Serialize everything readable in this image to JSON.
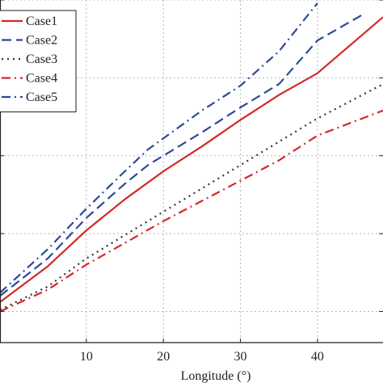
{
  "chart_data": {
    "type": "line",
    "xlabel": "Longitude (°)",
    "ylabel": "",
    "xlim": [
      -1.2,
      48.5
    ],
    "ylim": [
      0,
      22
    ],
    "x_ticks": [
      10,
      20,
      30,
      40
    ],
    "x_tick_labels": [
      "10",
      "20",
      "30",
      "40"
    ],
    "y_ticks": [
      2,
      7,
      12,
      17,
      22
    ],
    "grid": true,
    "legend_position": "top-left",
    "series": [
      {
        "name": "Case1",
        "color": "#d62728",
        "dash": "solid",
        "x": [
          -1.2,
          5,
          10,
          15,
          20,
          25,
          30,
          35,
          40,
          48.5
        ],
        "y": [
          2.6,
          4.9,
          7.2,
          9.2,
          11.0,
          12.6,
          14.3,
          15.9,
          17.3,
          20.9
        ]
      },
      {
        "name": "Case2",
        "color": "#2c4a9a",
        "dash": "longdash",
        "x": [
          -1.2,
          5,
          10,
          15,
          18,
          25,
          30,
          35,
          40,
          46
        ],
        "y": [
          3.0,
          5.4,
          8.0,
          10.2,
          11.4,
          13.5,
          15.1,
          16.6,
          19.4,
          21.1
        ]
      },
      {
        "name": "Case3",
        "color": "#333333",
        "dash": "dotted",
        "x": [
          -1.2,
          5,
          10,
          15,
          20,
          25,
          30,
          35,
          40,
          48.5
        ],
        "y": [
          2.1,
          3.6,
          5.4,
          6.9,
          8.4,
          9.9,
          11.4,
          12.9,
          14.4,
          16.6
        ]
      },
      {
        "name": "Case4",
        "color": "#d62728",
        "dash": "dashdot",
        "x": [
          -1.2,
          5,
          10,
          15,
          20,
          25,
          30,
          35,
          40,
          48.5
        ],
        "y": [
          2.0,
          3.4,
          5.0,
          6.4,
          7.8,
          9.1,
          10.4,
          11.7,
          13.3,
          14.9
        ]
      },
      {
        "name": "Case5",
        "color": "#2c4a9a",
        "dash": "dashdot",
        "x": [
          -1.2,
          5,
          10,
          15,
          18,
          25,
          30,
          35,
          40
        ],
        "y": [
          3.2,
          6.0,
          8.6,
          11.0,
          12.4,
          14.9,
          16.5,
          18.7,
          21.8
        ]
      }
    ]
  }
}
